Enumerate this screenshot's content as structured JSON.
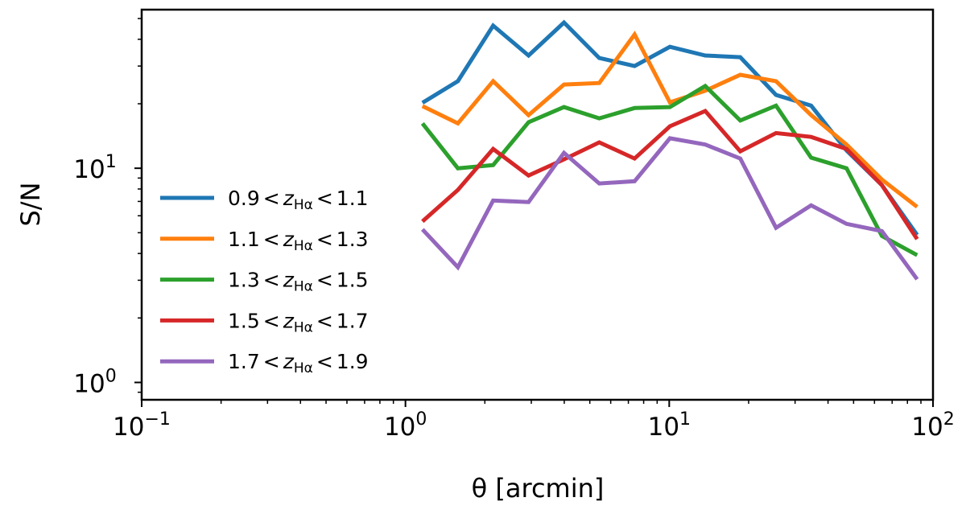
{
  "chart_data": {
    "type": "line",
    "xlabel": "θ [arcmin]",
    "ylabel": "S/N",
    "xscale": "log",
    "yscale": "log",
    "xlim": [
      0.1,
      100
    ],
    "ylim": [
      0.83,
      55
    ],
    "xticks": [
      {
        "base": "10",
        "exp": "−1",
        "value": 0.1
      },
      {
        "base": "10",
        "exp": "0",
        "value": 1
      },
      {
        "base": "10",
        "exp": "1",
        "value": 10
      },
      {
        "base": "10",
        "exp": "2",
        "value": 100
      }
    ],
    "yticks": [
      {
        "base": "10",
        "exp": "0",
        "value": 1
      },
      {
        "base": "10",
        "exp": "1",
        "value": 10
      }
    ],
    "grid": false,
    "legend_position": "center-left",
    "x": [
      1.16,
      1.58,
      2.15,
      2.93,
      3.99,
      5.43,
      7.39,
      10.06,
      13.7,
      18.6,
      25.4,
      34.5,
      47.0,
      64.0,
      87.1
    ],
    "series": [
      {
        "name": "0.9 < zHα < 1.1",
        "lo": "0.9",
        "hi": "1.1",
        "color": "#1f77b4",
        "values": [
          20.2,
          25.5,
          46.3,
          33.6,
          47.9,
          32.7,
          30.0,
          36.9,
          33.6,
          33.0,
          22.0,
          19.6,
          12.1,
          8.34,
          4.88
        ]
      },
      {
        "name": "1.1 < zHα < 1.3",
        "lo": "1.1",
        "hi": "1.3",
        "color": "#ff7f0e",
        "values": [
          19.5,
          16.2,
          25.5,
          17.7,
          24.6,
          25.0,
          42.1,
          20.3,
          23.0,
          27.3,
          25.5,
          17.7,
          12.9,
          8.86,
          6.6
        ]
      },
      {
        "name": "1.3 < zHα < 1.5",
        "lo": "1.3",
        "hi": "1.5",
        "color": "#2ca02c",
        "values": [
          16.2,
          10.0,
          10.35,
          16.4,
          19.3,
          17.1,
          19.1,
          19.3,
          24.2,
          16.7,
          19.6,
          11.2,
          10.0,
          4.83,
          3.93
        ]
      },
      {
        "name": "1.5 < zHα < 1.7",
        "lo": "1.5",
        "hi": "1.7",
        "color": "#d62728",
        "values": [
          5.65,
          7.92,
          12.3,
          9.25,
          11.0,
          13.2,
          11.1,
          15.7,
          18.5,
          12.0,
          14.6,
          14.0,
          12.3,
          8.34,
          4.67
        ]
      },
      {
        "name": "1.7 < zHα < 1.9",
        "lo": "1.7",
        "hi": "1.9",
        "color": "#9467bd",
        "values": [
          5.18,
          3.45,
          7.07,
          6.95,
          11.8,
          8.49,
          8.7,
          13.8,
          12.9,
          11.1,
          5.27,
          6.71,
          5.5,
          5.09,
          3.03
        ]
      }
    ],
    "legend_var": "z",
    "legend_sub": "Hα",
    "legend_op": "<"
  }
}
